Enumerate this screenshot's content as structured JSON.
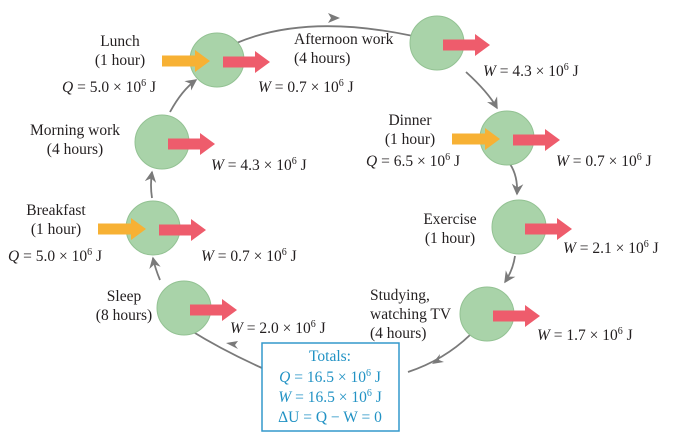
{
  "colors": {
    "node_fill": "#a9d3a9",
    "node_stroke": "#93c293",
    "loop": "#7a7a7a",
    "work_arrow": "#ee5c6c",
    "heat_arrow": "#f7b134",
    "totals_border": "#3399cc",
    "totals_text": "#2192c4"
  },
  "activities": [
    {
      "id": "lunch",
      "label": [
        "Lunch",
        "(1 hour)"
      ],
      "Q": "5.0",
      "W": "0.7"
    },
    {
      "id": "afternoon-work",
      "label": [
        "Afternoon work",
        "(4 hours)"
      ],
      "Q": null,
      "W": "4.3"
    },
    {
      "id": "dinner",
      "label": [
        "Dinner",
        "(1 hour)"
      ],
      "Q": "6.5",
      "W": "0.7"
    },
    {
      "id": "exercise",
      "label": [
        "Exercise",
        "(1 hour)"
      ],
      "Q": null,
      "W": "2.1"
    },
    {
      "id": "studying",
      "label": [
        "Studying,",
        "watching TV",
        "(4 hours)"
      ],
      "Q": null,
      "W": "1.7"
    },
    {
      "id": "sleep",
      "label": [
        "Sleep",
        "(8 hours)"
      ],
      "Q": null,
      "W": "2.0"
    },
    {
      "id": "breakfast",
      "label": [
        "Breakfast",
        "(1 hour)"
      ],
      "Q": "5.0",
      "W": "0.7"
    },
    {
      "id": "morning-work",
      "label": [
        "Morning work",
        "(4 hours)"
      ],
      "Q": null,
      "W": "4.3"
    }
  ],
  "units": {
    "times": "×",
    "base": "10",
    "exp": "6",
    "unit": "J"
  },
  "totals": {
    "title": "Totals:",
    "Q": "16.5",
    "W": "16.5",
    "dU_line": "ΔU = Q − W = 0"
  }
}
